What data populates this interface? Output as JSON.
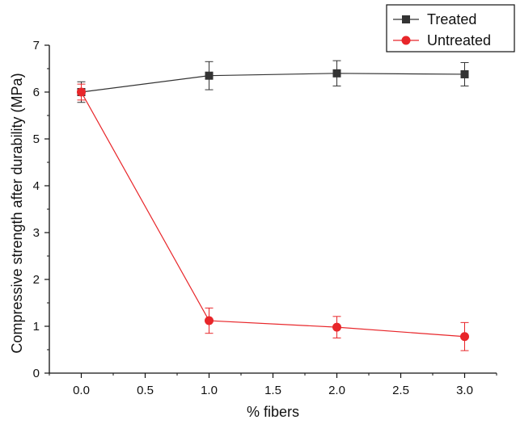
{
  "chart_data": {
    "type": "line",
    "title": "",
    "xlabel": "% fibers",
    "ylabel": "Compressive strength after durability (MPa)",
    "xlim": [
      -0.25,
      3.25
    ],
    "ylim": [
      0,
      7
    ],
    "xticks": [
      0.0,
      0.5,
      1.0,
      1.5,
      2.0,
      2.5,
      3.0
    ],
    "xtick_labels": [
      "0.0",
      "0.5",
      "1.0",
      "1.5",
      "2.0",
      "2.5",
      "3.0"
    ],
    "yticks": [
      0,
      1,
      2,
      3,
      4,
      5,
      6,
      7
    ],
    "ytick_labels": [
      "0",
      "1",
      "2",
      "3",
      "4",
      "5",
      "6",
      "7"
    ],
    "grid": false,
    "legend_position": "top-right",
    "series": [
      {
        "name": "Treated",
        "color": "#333333",
        "marker": "square",
        "x": [
          0.0,
          1.0,
          2.0,
          3.0
        ],
        "y": [
          6.0,
          6.35,
          6.4,
          6.38
        ],
        "error": [
          0.22,
          0.3,
          0.27,
          0.25
        ]
      },
      {
        "name": "Untreated",
        "color": "#e8262a",
        "marker": "circle",
        "x": [
          0.0,
          1.0,
          2.0,
          3.0
        ],
        "y": [
          6.0,
          1.12,
          0.98,
          0.78
        ],
        "error": [
          0.17,
          0.27,
          0.23,
          0.3
        ]
      }
    ]
  }
}
